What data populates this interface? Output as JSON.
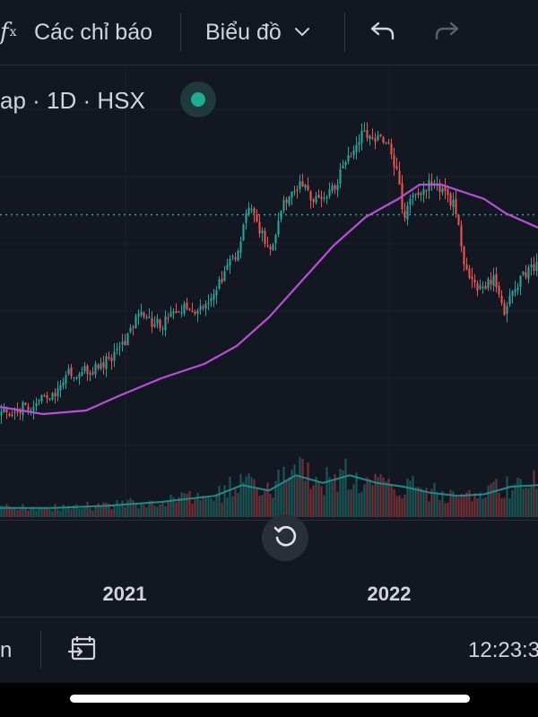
{
  "toolbar": {
    "fx_icon": "function-icon",
    "indicators_label": "Các chỉ báo",
    "chart_type_label": "Biểu đồ",
    "chevron_icon": "chevron-down-icon",
    "undo_icon": "undo-icon",
    "redo_icon": "redo-icon"
  },
  "legend": {
    "symbol_text": "ap · 1D · HSX",
    "status_icon": "market-status-dot-icon",
    "status_color": "#22ab94"
  },
  "colors": {
    "background": "#131722",
    "up": "#26a69a",
    "down": "#ef5350",
    "ma": "#b84fd6",
    "volume_ma": "#1e8c8a",
    "price_line": "#26a69a"
  },
  "chart_data": {
    "type": "candlestick",
    "x_ticks": [
      "2021",
      "2022"
    ],
    "price_points": [
      [
        0.0,
        0.83
      ],
      [
        0.02,
        0.84
      ],
      [
        0.05,
        0.83
      ],
      [
        0.08,
        0.8
      ],
      [
        0.1,
        0.79
      ],
      [
        0.12,
        0.74
      ],
      [
        0.15,
        0.73
      ],
      [
        0.18,
        0.72
      ],
      [
        0.2,
        0.7
      ],
      [
        0.22,
        0.67
      ],
      [
        0.24,
        0.62
      ],
      [
        0.26,
        0.57
      ],
      [
        0.28,
        0.6
      ],
      [
        0.3,
        0.6
      ],
      [
        0.32,
        0.55
      ],
      [
        0.34,
        0.55
      ],
      [
        0.36,
        0.56
      ],
      [
        0.38,
        0.54
      ],
      [
        0.4,
        0.52
      ],
      [
        0.42,
        0.44
      ],
      [
        0.44,
        0.4
      ],
      [
        0.46,
        0.28
      ],
      [
        0.48,
        0.32
      ],
      [
        0.5,
        0.4
      ],
      [
        0.51,
        0.35
      ],
      [
        0.52,
        0.3
      ],
      [
        0.54,
        0.22
      ],
      [
        0.56,
        0.21
      ],
      [
        0.58,
        0.24
      ],
      [
        0.6,
        0.26
      ],
      [
        0.62,
        0.22
      ],
      [
        0.64,
        0.16
      ],
      [
        0.66,
        0.1
      ],
      [
        0.68,
        0.06
      ],
      [
        0.7,
        0.09
      ],
      [
        0.72,
        0.08
      ],
      [
        0.74,
        0.18
      ],
      [
        0.75,
        0.3
      ],
      [
        0.77,
        0.24
      ],
      [
        0.79,
        0.22
      ],
      [
        0.81,
        0.2
      ],
      [
        0.83,
        0.24
      ],
      [
        0.85,
        0.28
      ],
      [
        0.86,
        0.4
      ],
      [
        0.88,
        0.48
      ],
      [
        0.9,
        0.5
      ],
      [
        0.92,
        0.48
      ],
      [
        0.94,
        0.58
      ],
      [
        0.96,
        0.49
      ],
      [
        0.98,
        0.46
      ],
      [
        1.0,
        0.44
      ]
    ],
    "ma_points": [
      [
        0.0,
        0.83
      ],
      [
        0.08,
        0.85
      ],
      [
        0.16,
        0.84
      ],
      [
        0.22,
        0.8
      ],
      [
        0.3,
        0.75
      ],
      [
        0.38,
        0.71
      ],
      [
        0.44,
        0.66
      ],
      [
        0.5,
        0.58
      ],
      [
        0.56,
        0.48
      ],
      [
        0.62,
        0.38
      ],
      [
        0.68,
        0.3
      ],
      [
        0.74,
        0.25
      ],
      [
        0.78,
        0.21
      ],
      [
        0.82,
        0.21
      ],
      [
        0.86,
        0.23
      ],
      [
        0.9,
        0.25
      ],
      [
        0.94,
        0.29
      ],
      [
        1.0,
        0.33
      ]
    ],
    "price_line_level": 0.294,
    "volume_ma_points": [
      [
        0.0,
        0.12
      ],
      [
        0.1,
        0.12
      ],
      [
        0.2,
        0.15
      ],
      [
        0.3,
        0.2
      ],
      [
        0.4,
        0.28
      ],
      [
        0.45,
        0.42
      ],
      [
        0.5,
        0.35
      ],
      [
        0.55,
        0.55
      ],
      [
        0.6,
        0.45
      ],
      [
        0.65,
        0.55
      ],
      [
        0.7,
        0.45
      ],
      [
        0.75,
        0.4
      ],
      [
        0.8,
        0.32
      ],
      [
        0.85,
        0.28
      ],
      [
        0.9,
        0.3
      ],
      [
        0.95,
        0.4
      ],
      [
        1.0,
        0.42
      ]
    ]
  },
  "time_axis": {
    "labels": [
      "2021",
      "2022"
    ],
    "reset_icon": "reset-rotate-icon"
  },
  "bottom_bar": {
    "left_text": "n",
    "goto_date_icon": "go-to-date-icon",
    "clock": "12:23:3"
  }
}
